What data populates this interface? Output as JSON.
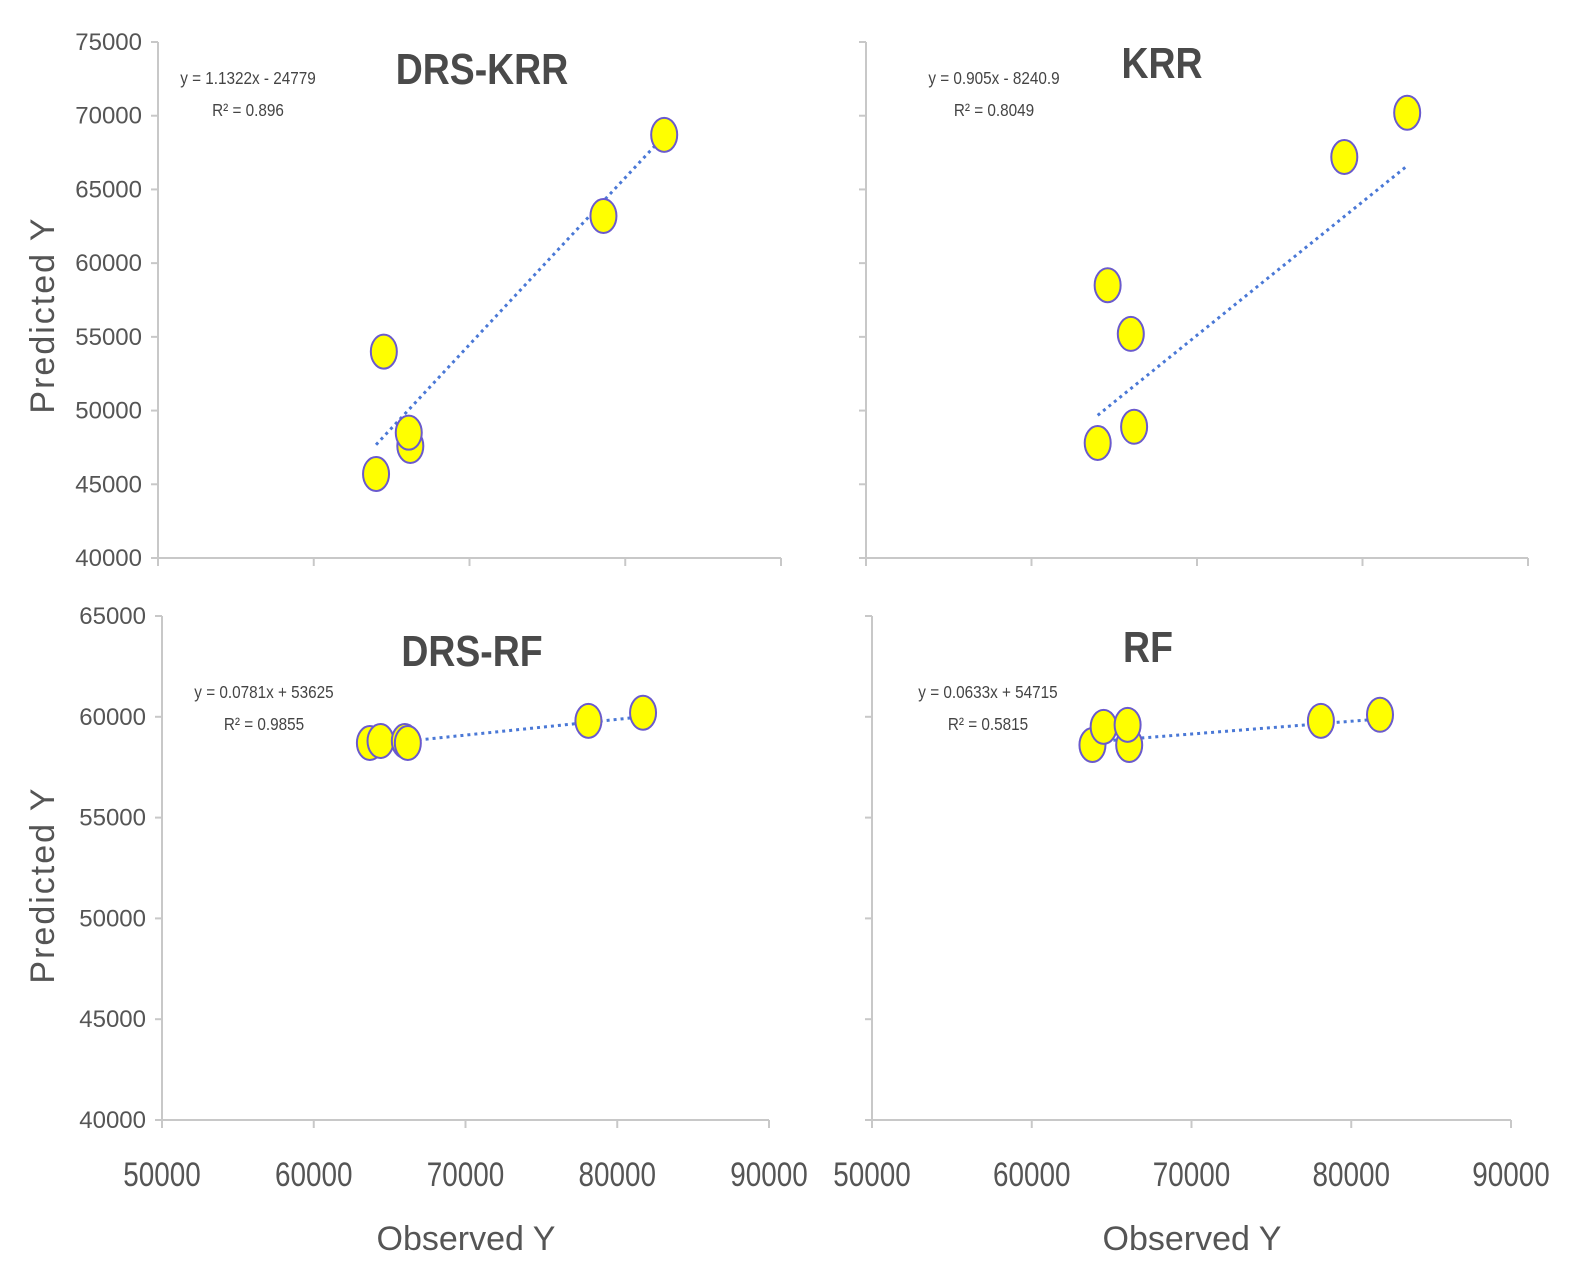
{
  "chart_data": {
    "y_axis_label": "Predicted Y",
    "x_axis_label": "Observed Y",
    "panels": [
      {
        "id": "drs-krr",
        "type": "scatter",
        "title": "DRS-KRR",
        "equation": "y = 1.1322x - 24779",
        "r_squared": "R² = 0.896",
        "ylim": [
          40000,
          75000
        ],
        "yticks": [
          40000,
          45000,
          50000,
          55000,
          60000,
          65000,
          70000,
          75000
        ],
        "ytick_labels": [
          "40000",
          "45000",
          "50000",
          "55000",
          "60000",
          "65000",
          "70000",
          "75000"
        ],
        "xlim": [
          50000,
          90000
        ],
        "xticks": [
          50000,
          60000,
          70000,
          80000,
          90000
        ],
        "points": [
          {
            "x": 64000,
            "y": 45700
          },
          {
            "x": 64500,
            "y": 54000
          },
          {
            "x": 66200,
            "y": 47600
          },
          {
            "x": 66100,
            "y": 48500
          },
          {
            "x": 78600,
            "y": 63200
          },
          {
            "x": 82500,
            "y": 68700
          }
        ],
        "trendline": {
          "slope": 1.1322,
          "intercept": -24779,
          "x_range": [
            64000,
            82500
          ]
        }
      },
      {
        "id": "krr",
        "type": "scatter",
        "title": "KRR",
        "equation": "y = 0.905x - 8240.9",
        "r_squared": "R² = 0.8049",
        "ylim": [
          40000,
          75000
        ],
        "yticks": [
          40000,
          45000,
          50000,
          55000,
          60000,
          65000,
          70000,
          75000
        ],
        "ytick_labels": [],
        "xlim": [
          50000,
          90000
        ],
        "xticks": [
          50000,
          60000,
          70000,
          80000,
          90000
        ],
        "points": [
          {
            "x": 64000,
            "y": 47800
          },
          {
            "x": 64600,
            "y": 58500
          },
          {
            "x": 66000,
            "y": 55200
          },
          {
            "x": 66200,
            "y": 48900
          },
          {
            "x": 78900,
            "y": 67200
          },
          {
            "x": 82700,
            "y": 70200
          }
        ],
        "trendline": {
          "slope": 0.905,
          "intercept": -8240.9,
          "x_range": [
            64000,
            82700
          ]
        }
      },
      {
        "id": "drs-rf",
        "type": "scatter",
        "title": "DRS-RF",
        "equation": "y = 0.0781x + 53625",
        "r_squared": "R² = 0.9855",
        "ylim": [
          40000,
          65000
        ],
        "yticks": [
          40000,
          45000,
          50000,
          55000,
          60000,
          65000
        ],
        "ytick_labels": [
          "40000",
          "45000",
          "50000",
          "55000",
          "60000",
          "65000"
        ],
        "xlim": [
          50000,
          90000
        ],
        "xticks": [
          50000,
          60000,
          70000,
          80000,
          90000
        ],
        "xtick_labels": [
          "50000",
          "60000",
          "70000",
          "80000",
          "90000"
        ],
        "points": [
          {
            "x": 63700,
            "y": 58700
          },
          {
            "x": 64400,
            "y": 58800
          },
          {
            "x": 66000,
            "y": 58800
          },
          {
            "x": 66200,
            "y": 58700
          },
          {
            "x": 78100,
            "y": 59800
          },
          {
            "x": 81700,
            "y": 60200
          }
        ],
        "trendline": {
          "slope": 0.0781,
          "intercept": 53625,
          "x_range": [
            63700,
            81700
          ]
        }
      },
      {
        "id": "rf",
        "type": "scatter",
        "title": "RF",
        "equation": "y = 0.0633x + 54715",
        "r_squared": "R² = 0.5815",
        "ylim": [
          40000,
          65000
        ],
        "yticks": [
          40000,
          45000,
          50000,
          55000,
          60000,
          65000
        ],
        "ytick_labels": [],
        "xlim": [
          50000,
          90000
        ],
        "xticks": [
          50000,
          60000,
          70000,
          80000,
          90000
        ],
        "xtick_labels": [
          "50000",
          "60000",
          "70000",
          "80000",
          "90000"
        ],
        "points": [
          {
            "x": 63800,
            "y": 58600
          },
          {
            "x": 64500,
            "y": 59500
          },
          {
            "x": 66100,
            "y": 58600
          },
          {
            "x": 66000,
            "y": 59600
          },
          {
            "x": 78100,
            "y": 59800
          },
          {
            "x": 81800,
            "y": 60100
          }
        ],
        "trendline": {
          "slope": 0.0633,
          "intercept": 54715,
          "x_range": [
            63800,
            81800
          ]
        }
      }
    ]
  }
}
